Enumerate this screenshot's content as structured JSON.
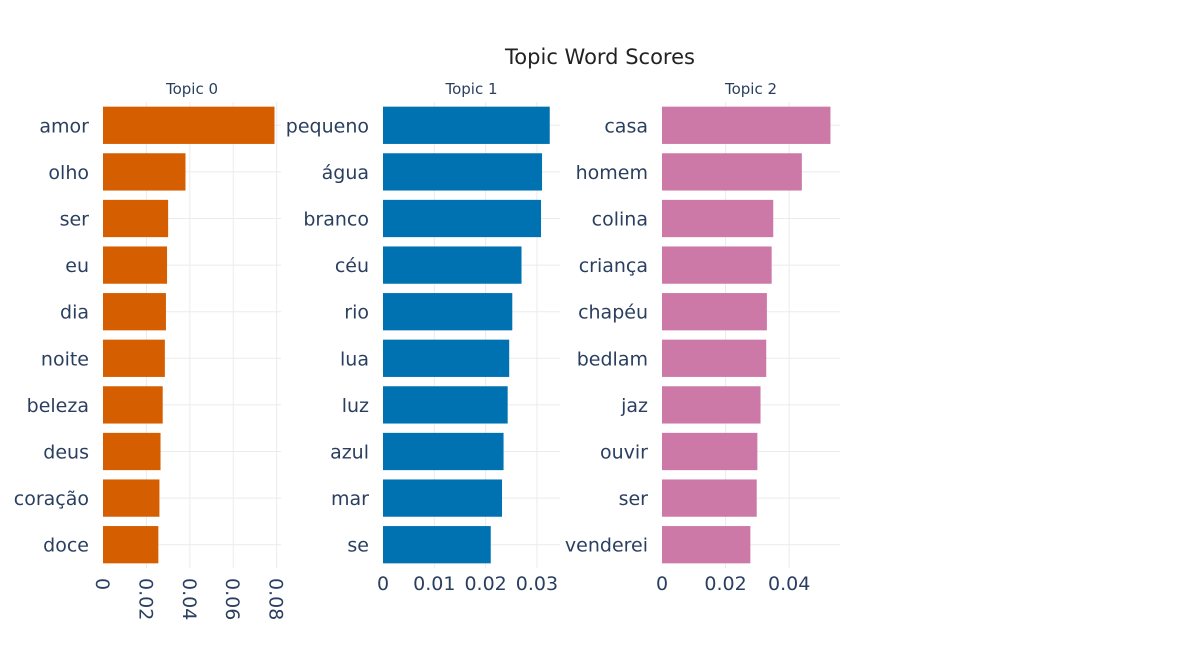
{
  "chart_data": {
    "type": "bar",
    "title": "Topic Word Scores",
    "subplots": [
      {
        "title": "Topic 0",
        "color": "#D55E00",
        "words": [
          "amor",
          "olho",
          "ser",
          "eu",
          "dia",
          "noite",
          "beleza",
          "deus",
          "coração",
          "doce"
        ],
        "values": [
          0.079,
          0.038,
          0.03,
          0.0295,
          0.029,
          0.0285,
          0.0275,
          0.0265,
          0.026,
          0.0255
        ],
        "xlim": [
          0,
          0.082
        ],
        "ticks": [
          0,
          0.02,
          0.04,
          0.06,
          0.08
        ],
        "tick_labels": [
          "0",
          "0.02",
          "0.04",
          "0.06",
          "0.08"
        ],
        "tick_rotation": 90
      },
      {
        "title": "Topic 1",
        "color": "#0072B2",
        "words": [
          "pequeno",
          "água",
          "branco",
          "céu",
          "rio",
          "lua",
          "luz",
          "azul",
          "mar",
          "se"
        ],
        "values": [
          0.0325,
          0.031,
          0.0308,
          0.027,
          0.0252,
          0.0246,
          0.0243,
          0.0235,
          0.0232,
          0.021
        ],
        "xlim": [
          0,
          0.0345
        ],
        "ticks": [
          0,
          0.01,
          0.02,
          0.03
        ],
        "tick_labels": [
          "0",
          "0.01",
          "0.02",
          "0.03"
        ],
        "tick_rotation": 0
      },
      {
        "title": "Topic 2",
        "color": "#CC79A7",
        "words": [
          "casa",
          "homem",
          "colina",
          "criança",
          "chapéu",
          "bedlam",
          "jaz",
          "ouvir",
          "ser",
          "venderei"
        ],
        "values": [
          0.053,
          0.044,
          0.035,
          0.0345,
          0.033,
          0.0328,
          0.031,
          0.03,
          0.0298,
          0.0278
        ],
        "xlim": [
          0,
          0.056
        ],
        "ticks": [
          0,
          0.02,
          0.04
        ],
        "tick_labels": [
          "0",
          "0.02",
          "0.04"
        ],
        "tick_rotation": 0
      }
    ]
  }
}
